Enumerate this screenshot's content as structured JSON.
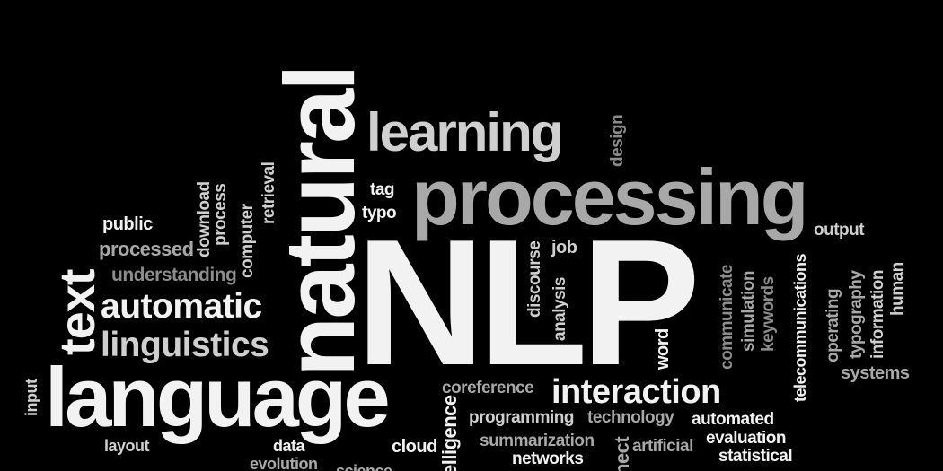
{
  "words": {
    "nlp": "NLP",
    "natural": "natural",
    "processing": "processing",
    "language": "language",
    "learning": "learning",
    "text": "text",
    "automatic": "automatic",
    "linguistics": "linguistics",
    "interaction": "interaction",
    "understanding": "understanding",
    "processed": "processed",
    "public": "public",
    "download": "download",
    "process": "process",
    "computer": "computer",
    "retrieval": "retrieval",
    "tag": "tag",
    "typo": "typo",
    "design": "design",
    "job": "job",
    "discourse": "discourse",
    "analysis": "analysis",
    "word": "word",
    "communicate": "communicate",
    "simulation": "simulation",
    "keywords": "keywords",
    "telecommunications": "telecommunications",
    "output": "output",
    "operating": "operating",
    "typography": "typography",
    "information": "information",
    "human": "human",
    "systems": "systems",
    "coreference": "coreference",
    "programming": "programming",
    "technology": "technology",
    "automated": "automated",
    "evaluation": "evaluation",
    "statistical": "statistical",
    "summarization": "summarization",
    "artificial": "artificial",
    "networks": "networks",
    "intelligence": "elligence",
    "connect": "nect",
    "cloud": "cloud",
    "data": "data",
    "evolution": "evolution",
    "layout": "layout",
    "input": "input",
    "science": "science"
  }
}
